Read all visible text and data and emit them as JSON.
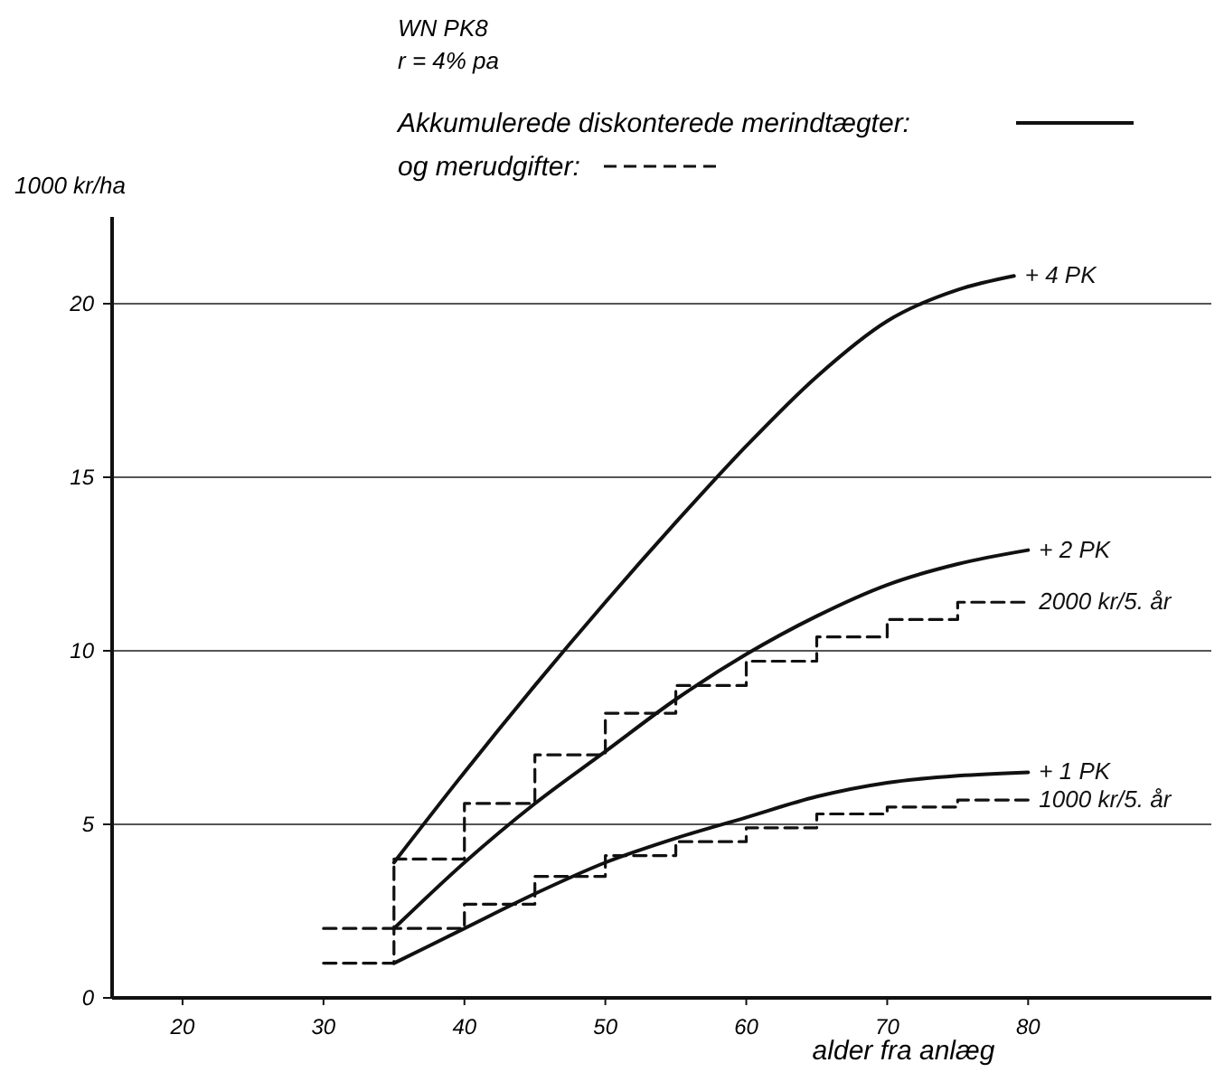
{
  "chart_data": {
    "type": "line",
    "title": "WN PK8",
    "subtitle": "r = 4% pa",
    "ylabel": "1000 kr/ha",
    "xlabel": "alder fra anlæg",
    "annotations": [
      "Akkumulerede diskonterede merindtægter:",
      "og merudgifter:"
    ],
    "xlim": [
      15,
      93
    ],
    "xticks": [
      20,
      30,
      40,
      50,
      60,
      70,
      80
    ],
    "ylim": [
      0,
      22.5
    ],
    "yticks": [
      0,
      5,
      10,
      15,
      20
    ],
    "grid": "y",
    "legend": false,
    "marker": "none",
    "series": [
      {
        "name": "+ 4 PK",
        "line_style": "solid",
        "color": "#111111",
        "x": [
          35,
          40,
          45,
          50,
          55,
          60,
          65,
          70,
          75,
          79
        ],
        "values": [
          3.9,
          6.5,
          9.0,
          11.4,
          13.7,
          15.9,
          17.9,
          19.5,
          20.4,
          20.8
        ]
      },
      {
        "name": "+ 2 PK",
        "line_style": "solid",
        "color": "#111111",
        "x": [
          35,
          40,
          45,
          50,
          55,
          60,
          65,
          70,
          75,
          80
        ],
        "values": [
          2.0,
          3.9,
          5.6,
          7.1,
          8.6,
          9.9,
          11.0,
          11.9,
          12.5,
          12.9
        ]
      },
      {
        "name": "2000 kr/5. år",
        "type": "step",
        "line_style": "dashed",
        "color": "#111111",
        "x": [
          30,
          35,
          40,
          45,
          50,
          55,
          60,
          65,
          70,
          75,
          80
        ],
        "values": [
          2.0,
          4.0,
          5.6,
          7.0,
          8.2,
          9.0,
          9.7,
          10.4,
          10.9,
          11.4,
          11.4
        ]
      },
      {
        "name": "+ 1 PK",
        "line_style": "solid",
        "color": "#111111",
        "x": [
          35,
          40,
          45,
          50,
          55,
          60,
          65,
          70,
          75,
          80
        ],
        "values": [
          1.0,
          2.0,
          3.0,
          3.9,
          4.6,
          5.2,
          5.8,
          6.2,
          6.4,
          6.5
        ]
      },
      {
        "name": "1000 kr/5. år",
        "type": "step",
        "line_style": "dashed",
        "color": "#111111",
        "x": [
          30,
          35,
          40,
          45,
          50,
          55,
          60,
          65,
          70,
          75,
          80
        ],
        "values": [
          1.0,
          2.0,
          2.7,
          3.5,
          4.1,
          4.5,
          4.9,
          5.3,
          5.5,
          5.7,
          5.7
        ]
      }
    ]
  }
}
